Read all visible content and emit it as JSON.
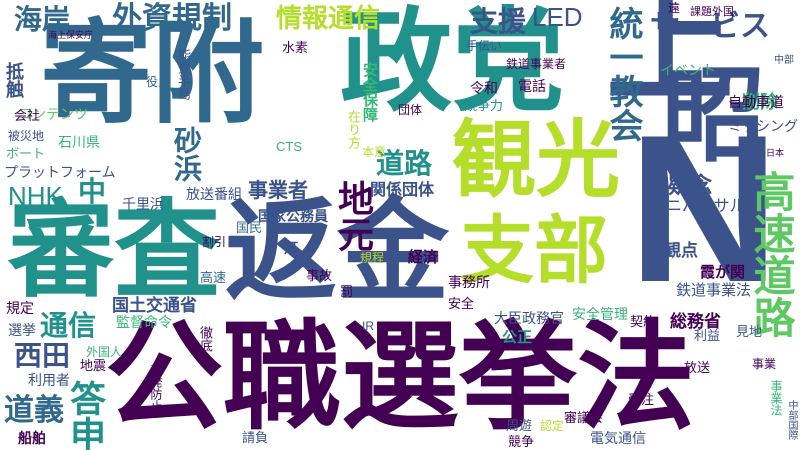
{
  "palette": {
    "dark_purple": "#440154",
    "indigo": "#3b528b",
    "blue": "#31688e",
    "teal": "#21918c",
    "green": "#35b779",
    "lime": "#5ec962",
    "yellow": "#b5de2b"
  },
  "words": [
    {
      "text": "公職選挙法",
      "color": "#440154"
    },
    {
      "text": "寄附",
      "color": "#31688e"
    },
    {
      "text": "政党",
      "color": "#21918c"
    },
    {
      "text": "審査",
      "color": "#21918c"
    },
    {
      "text": "返金",
      "color": "#3b528b"
    },
    {
      "text": "観光",
      "color": "#b5de2b"
    },
    {
      "text": "支部",
      "color": "#b5de2b"
    },
    {
      "text": "昭",
      "color": "#3b528b"
    },
    {
      "text": "N",
      "color": "#3b528b"
    },
    {
      "text": "上",
      "color": "#3b528b"
    },
    {
      "text": "高速道路",
      "color": "#5ec962"
    },
    {
      "text": "統一教会",
      "color": "#31688e"
    },
    {
      "text": "外資規制",
      "color": "#31688e"
    },
    {
      "text": "情報通信",
      "color": "#b5de2b"
    },
    {
      "text": "海岸",
      "color": "#31688e"
    },
    {
      "text": "支援",
      "color": "#3b528b"
    },
    {
      "text": "LED",
      "color": "#3b528b"
    },
    {
      "text": "サービス",
      "color": "#3b528b"
    },
    {
      "text": "NHK",
      "color": "#21918c"
    },
    {
      "text": "地元",
      "color": "#440154"
    },
    {
      "text": "道路",
      "color": "#21918c"
    },
    {
      "text": "砂浜",
      "color": "#31688e"
    },
    {
      "text": "中",
      "color": "#21918c"
    },
    {
      "text": "西田",
      "color": "#3b528b"
    },
    {
      "text": "道義",
      "color": "#31688e"
    },
    {
      "text": "答申",
      "color": "#21918c"
    },
    {
      "text": "通信",
      "color": "#21918c"
    },
    {
      "text": "疑念",
      "color": "#3b528b"
    },
    {
      "text": "事業者",
      "color": "#3b528b"
    },
    {
      "text": "削除",
      "color": "#35b779"
    },
    {
      "text": "ミッシング",
      "color": "#3b528b"
    },
    {
      "text": "自動車道",
      "color": "#440154"
    },
    {
      "text": "ユニバーサル",
      "color": "#3b528b"
    },
    {
      "text": "観点",
      "color": "#3b528b"
    },
    {
      "text": "霞が関",
      "color": "#440154"
    },
    {
      "text": "鉄道事業法",
      "color": "#3b528b"
    },
    {
      "text": "国土交通省",
      "color": "#3b528b"
    },
    {
      "text": "総務省",
      "color": "#440154"
    },
    {
      "text": "大臣政務官",
      "color": "#3b528b"
    },
    {
      "text": "安全管理",
      "color": "#35b779"
    },
    {
      "text": "事務所",
      "color": "#440154"
    },
    {
      "text": "公正",
      "color": "#21918c"
    },
    {
      "text": "関係団体",
      "color": "#3b528b"
    },
    {
      "text": "国家公務員",
      "color": "#3b528b"
    },
    {
      "text": "経済",
      "color": "#440154"
    },
    {
      "text": "放送番組",
      "color": "#3b528b"
    },
    {
      "text": "千里浜",
      "color": "#3b528b"
    },
    {
      "text": "プラットフォーム",
      "color": "#3b528b"
    },
    {
      "text": "被災地",
      "color": "#3b528b"
    },
    {
      "text": "ボート",
      "color": "#35b779"
    },
    {
      "text": "石川県",
      "color": "#35b779"
    },
    {
      "text": "コンテンツ",
      "color": "#5ec962"
    },
    {
      "text": "監督命令",
      "color": "#35b779"
    },
    {
      "text": "外国人",
      "color": "#35b779"
    },
    {
      "text": "利用者",
      "color": "#3b528b"
    },
    {
      "text": "選挙",
      "color": "#3b528b"
    },
    {
      "text": "規定",
      "color": "#440154"
    },
    {
      "text": "船舶",
      "color": "#440154"
    },
    {
      "text": "会社",
      "color": "#440154"
    },
    {
      "text": "抵触",
      "color": "#3b528b"
    },
    {
      "text": "鉄道事業者",
      "color": "#440154"
    },
    {
      "text": "イベント",
      "color": "#35b779"
    },
    {
      "text": "電話",
      "color": "#440154"
    },
    {
      "text": "令和",
      "color": "#440154"
    },
    {
      "text": "競争力",
      "color": "#21918c"
    },
    {
      "text": "団体",
      "color": "#440154"
    },
    {
      "text": "水素",
      "color": "#440154"
    },
    {
      "text": "手伝い",
      "color": "#3b528b"
    },
    {
      "text": "安全保障",
      "color": "#35b779"
    },
    {
      "text": "能登半島",
      "color": "#3b528b"
    },
    {
      "text": "役員",
      "color": "#31688e"
    },
    {
      "text": "国民",
      "color": "#31688e"
    },
    {
      "text": "CTS",
      "color": "#35b779"
    },
    {
      "text": "本意",
      "color": "#b5de2b"
    },
    {
      "text": "割引",
      "color": "#440154"
    },
    {
      "text": "灯",
      "color": "#3b528b"
    },
    {
      "text": "事故",
      "color": "#440154"
    },
    {
      "text": "高速",
      "color": "#31688e"
    },
    {
      "text": "規程",
      "color": "#b5de2b"
    },
    {
      "text": "罰",
      "color": "#440154"
    },
    {
      "text": "安全",
      "color": "#440154"
    },
    {
      "text": "IR",
      "color": "#3b528b"
    },
    {
      "text": "契約",
      "color": "#440154"
    },
    {
      "text": "利益",
      "color": "#3b528b"
    },
    {
      "text": "見地",
      "color": "#3b528b"
    },
    {
      "text": "放送",
      "color": "#440154"
    },
    {
      "text": "事業",
      "color": "#440154"
    },
    {
      "text": "受注",
      "color": "#440154"
    },
    {
      "text": "審議会",
      "color": "#440154"
    },
    {
      "text": "認定",
      "color": "#b5de2b"
    },
    {
      "text": "周遊",
      "color": "#3b528b"
    },
    {
      "text": "競争",
      "color": "#440154"
    },
    {
      "text": "電気通信",
      "color": "#3b528b"
    },
    {
      "text": "請負",
      "color": "#3b528b"
    },
    {
      "text": "徹底",
      "color": "#440154"
    },
    {
      "text": "再発防止",
      "color": "#440154"
    },
    {
      "text": "地震",
      "color": "#440154"
    },
    {
      "text": "在り方",
      "color": "#b5de2b"
    },
    {
      "text": "事業法",
      "color": "#35b779"
    },
    {
      "text": "海上保安庁",
      "color": "#440154"
    },
    {
      "text": "遠",
      "color": "#440154"
    },
    {
      "text": "課題",
      "color": "#440154"
    },
    {
      "text": "外国",
      "color": "#440154"
    },
    {
      "text": "中部",
      "color": "#3b528b"
    },
    {
      "text": "日本",
      "color": "#440154"
    },
    {
      "text": "中部国際",
      "color": "#3b528b"
    }
  ]
}
